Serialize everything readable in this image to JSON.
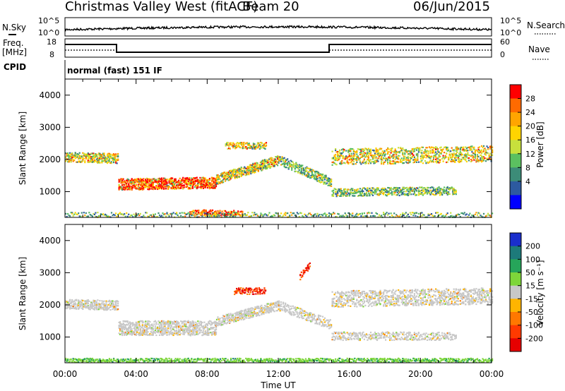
{
  "header": {
    "station": "Christmas Valley West (fitACF)",
    "beam": "Beam 20",
    "date": "06/Jun/2015"
  },
  "top_panels": {
    "nsky_label": "N.Sky",
    "nsky_ticks": [
      "10^5",
      "10^0"
    ],
    "nsearch_label": "N.Search",
    "nsearch_ticks": [
      "10^5",
      "10^0"
    ],
    "freq_label_1": "Freq.",
    "freq_label_2": "[MHz]",
    "freq_ticks": [
      "18",
      "8"
    ],
    "nave_label": "Nave",
    "nave_ticks": [
      "60",
      "0"
    ],
    "cpid_label": "CPID",
    "cpid_text": "normal (fast) 151 IF"
  },
  "chart_data": [
    {
      "type": "heatmap",
      "name": "power",
      "ylabel": "Slant Range [km]",
      "yticks": [
        1000,
        2000,
        3000,
        4000
      ],
      "ylim": [
        200,
        4500
      ],
      "xlim_hours": [
        0,
        24
      ],
      "colorbar": {
        "label": "Power [dB]",
        "ticks": [
          "28",
          "24",
          "20",
          "16",
          "12",
          "8",
          "4"
        ],
        "colors": [
          "#ff0000",
          "#ff6a00",
          "#ffa500",
          "#ffd400",
          "#c8e03c",
          "#5bc060",
          "#3c8c78",
          "#2d5aa0",
          "#0000ff"
        ]
      }
    },
    {
      "type": "heatmap",
      "name": "velocity",
      "ylabel": "Slant Range [km]",
      "yticks": [
        1000,
        2000,
        3000,
        4000
      ],
      "ylim": [
        200,
        4500
      ],
      "xlim_hours": [
        0,
        24
      ],
      "colorbar": {
        "label": "Velocity [m s⁻¹]",
        "ticks": [
          "200",
          "100",
          "50",
          "15",
          "-15",
          "-50",
          "-100",
          "-200"
        ],
        "colors": [
          "#1a2ecc",
          "#1d7a7a",
          "#26a55a",
          "#7ed63a",
          "#c8c8c8",
          "#ffb400",
          "#ff7800",
          "#ff3a00",
          "#e60000"
        ]
      }
    }
  ],
  "x_axis": {
    "ticks": [
      "00:00",
      "04:00",
      "08:00",
      "12:00",
      "16:00",
      "20:00",
      "00:00"
    ],
    "label": "Time UT"
  }
}
